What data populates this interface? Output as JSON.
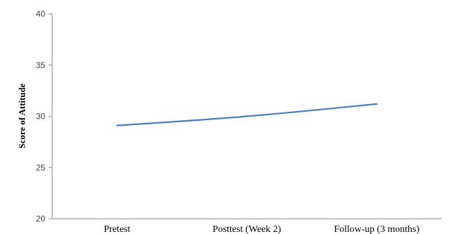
{
  "chart_data": {
    "type": "line",
    "title": "",
    "xlabel": "",
    "ylabel": "Score of Attitude",
    "categories": [
      "Pretest",
      "Posttest (Week 2)",
      "Follow-up (3 months)"
    ],
    "series": [
      {
        "values": [
          29.1,
          30.0,
          31.2
        ]
      }
    ],
    "ylim": [
      20,
      40
    ],
    "yticks": [
      "20",
      "25",
      "30",
      "35",
      "40"
    ],
    "grid": false,
    "legend": "none",
    "line_color": "#4a7ebb"
  }
}
